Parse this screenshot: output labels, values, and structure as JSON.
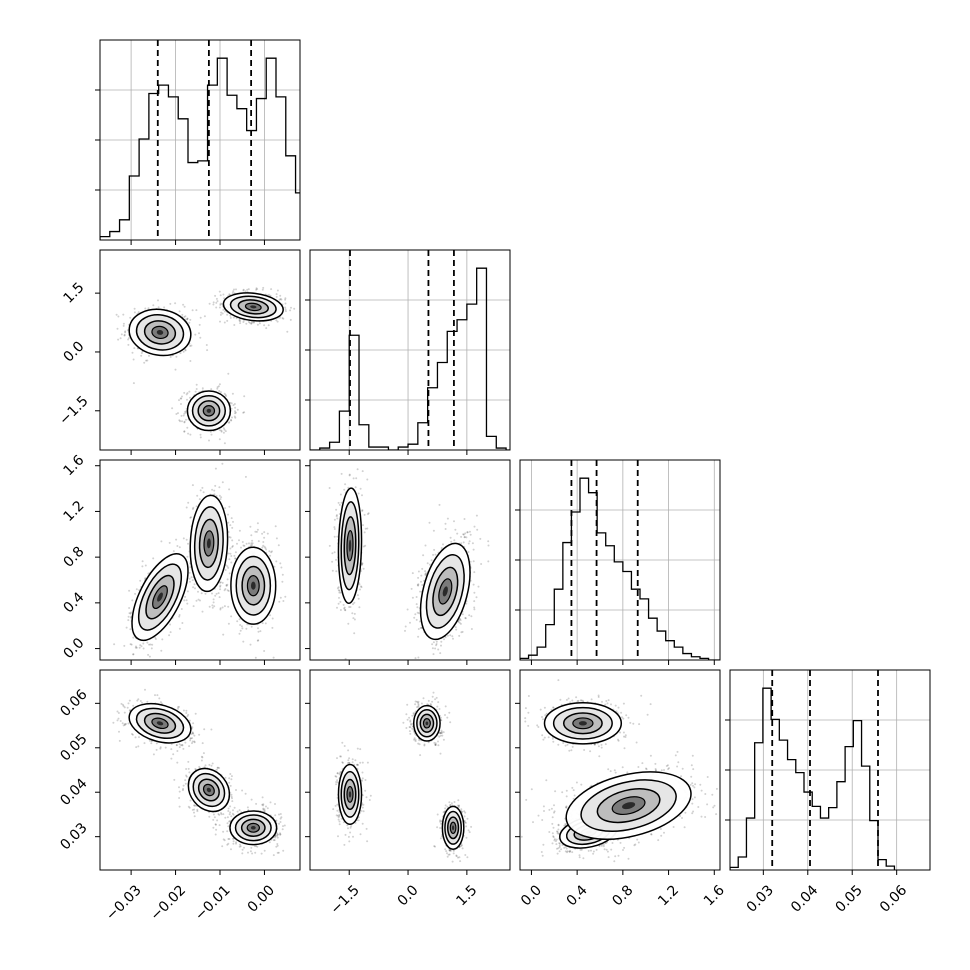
{
  "chart_data": {
    "type": "corner",
    "title": "",
    "parameters": [
      {
        "id": "p1",
        "range": [
          -0.037,
          0.008
        ],
        "ticks": [
          -0.03,
          -0.02,
          -0.01,
          0.0
        ],
        "tick_labels": [
          "−0.03",
          "−0.02",
          "−0.01",
          "0.00"
        ],
        "quantiles": [
          -0.024,
          -0.0125,
          -0.003
        ],
        "histogram": {
          "bin_start": -0.037,
          "bin_width": 0.0022,
          "counts": [
            2,
            5,
            12,
            38,
            60,
            87,
            92,
            85,
            72,
            46,
            47,
            92,
            108,
            86,
            78,
            65,
            84,
            108,
            85,
            50,
            28,
            6,
            2
          ]
        },
        "grid": true
      },
      {
        "id": "p2",
        "range": [
          -2.5,
          2.6
        ],
        "ticks": [
          -1.5,
          0.0,
          1.5
        ],
        "tick_labels": [
          "−1.5",
          "0.0",
          "1.5"
        ],
        "quantiles": [
          -1.48,
          0.52,
          1.17
        ],
        "histogram": {
          "bin_start": -2.5,
          "bin_width": 0.25,
          "counts": [
            0,
            2,
            8,
            40,
            118,
            26,
            3,
            3,
            0,
            3,
            6,
            28,
            64,
            90,
            122,
            134,
            150,
            187,
            14,
            2,
            0
          ]
        },
        "grid": true
      },
      {
        "id": "p3",
        "range": [
          -0.1,
          1.65
        ],
        "ticks": [
          0.0,
          0.4,
          0.8,
          1.2,
          1.6
        ],
        "tick_labels": [
          "0.0",
          "0.4",
          "0.8",
          "1.2",
          "1.6"
        ],
        "quantiles": [
          0.35,
          0.57,
          0.93
        ],
        "histogram": {
          "bin_start": -0.1,
          "bin_width": 0.075,
          "counts": [
            1,
            3,
            8,
            22,
            44,
            73,
            92,
            113,
            104,
            79,
            71,
            61,
            55,
            44,
            38,
            26,
            18,
            12,
            8,
            4,
            2,
            1,
            0,
            0
          ]
        },
        "grid": true
      },
      {
        "id": "p4",
        "range": [
          0.0225,
          0.0675
        ],
        "ticks": [
          0.03,
          0.04,
          0.05,
          0.06
        ],
        "tick_labels": [
          "0.03",
          "0.04",
          "0.05",
          "0.06"
        ],
        "quantiles": [
          0.032,
          0.0405,
          0.0558
        ],
        "histogram": {
          "bin_start": 0.0225,
          "bin_width": 0.00185,
          "counts": [
            2,
            10,
            40,
            98,
            140,
            116,
            100,
            85,
            75,
            60,
            49,
            40,
            48,
            68,
            95,
            115,
            80,
            38,
            8,
            3
          ]
        },
        "grid": true
      }
    ],
    "scatter_panels": [
      {
        "row": 1,
        "col": 0,
        "modes": [
          {
            "x": -0.0235,
            "y": 0.5,
            "sx": 0.0033,
            "sy": 0.28,
            "rho": -0.1,
            "w": 1.0
          },
          {
            "x": -0.0125,
            "y": -1.5,
            "sx": 0.0023,
            "sy": 0.24,
            "rho": 0.0,
            "w": 1.0
          },
          {
            "x": -0.0025,
            "y": 1.15,
            "sx": 0.0032,
            "sy": 0.17,
            "rho": -0.2,
            "w": 1.25
          }
        ]
      },
      {
        "row": 2,
        "col": 0,
        "modes": [
          {
            "x": -0.0235,
            "y": 0.45,
            "sx": 0.003,
            "sy": 0.18,
            "rho": 0.6,
            "w": 1.0
          },
          {
            "x": -0.0125,
            "y": 0.92,
            "sx": 0.002,
            "sy": 0.2,
            "rho": 0.1,
            "w": 1.0
          },
          {
            "x": -0.0025,
            "y": 0.55,
            "sx": 0.0024,
            "sy": 0.16,
            "rho": 0.0,
            "w": 1.2
          }
        ]
      },
      {
        "row": 3,
        "col": 0,
        "modes": [
          {
            "x": -0.0235,
            "y": 0.0555,
            "sx": 0.0033,
            "sy": 0.0021,
            "rho": -0.3,
            "w": 1.0
          },
          {
            "x": -0.0125,
            "y": 0.0405,
            "sx": 0.0022,
            "sy": 0.0023,
            "rho": -0.2,
            "w": 1.0
          },
          {
            "x": -0.0025,
            "y": 0.032,
            "sx": 0.0025,
            "sy": 0.0018,
            "rho": 0.0,
            "w": 1.2
          }
        ]
      },
      {
        "row": 2,
        "col": 1,
        "modes": [
          {
            "x": -1.48,
            "y": 0.9,
            "sx": 0.14,
            "sy": 0.24,
            "rho": 0.1,
            "w": 1.0
          },
          {
            "x": 0.95,
            "y": 0.5,
            "sx": 0.3,
            "sy": 0.2,
            "rho": 0.4,
            "w": 2.0
          }
        ]
      },
      {
        "row": 3,
        "col": 1,
        "modes": [
          {
            "x": -1.48,
            "y": 0.0395,
            "sx": 0.14,
            "sy": 0.0032,
            "rho": 0.0,
            "w": 1.0
          },
          {
            "x": 0.48,
            "y": 0.0555,
            "sx": 0.16,
            "sy": 0.0019,
            "rho": 0.0,
            "w": 1.0
          },
          {
            "x": 1.15,
            "y": 0.032,
            "sx": 0.13,
            "sy": 0.0023,
            "rho": 0.0,
            "w": 1.1
          }
        ]
      },
      {
        "row": 3,
        "col": 2,
        "modes": [
          {
            "x": 0.45,
            "y": 0.0555,
            "sx": 0.16,
            "sy": 0.0022,
            "rho": 0.0,
            "w": 1.0
          },
          {
            "x": 0.5,
            "y": 0.031,
            "sx": 0.12,
            "sy": 0.0017,
            "rho": 0.3,
            "w": 1.0
          },
          {
            "x": 0.85,
            "y": 0.037,
            "sx": 0.26,
            "sy": 0.0036,
            "rho": 0.35,
            "w": 1.5
          }
        ]
      }
    ]
  }
}
